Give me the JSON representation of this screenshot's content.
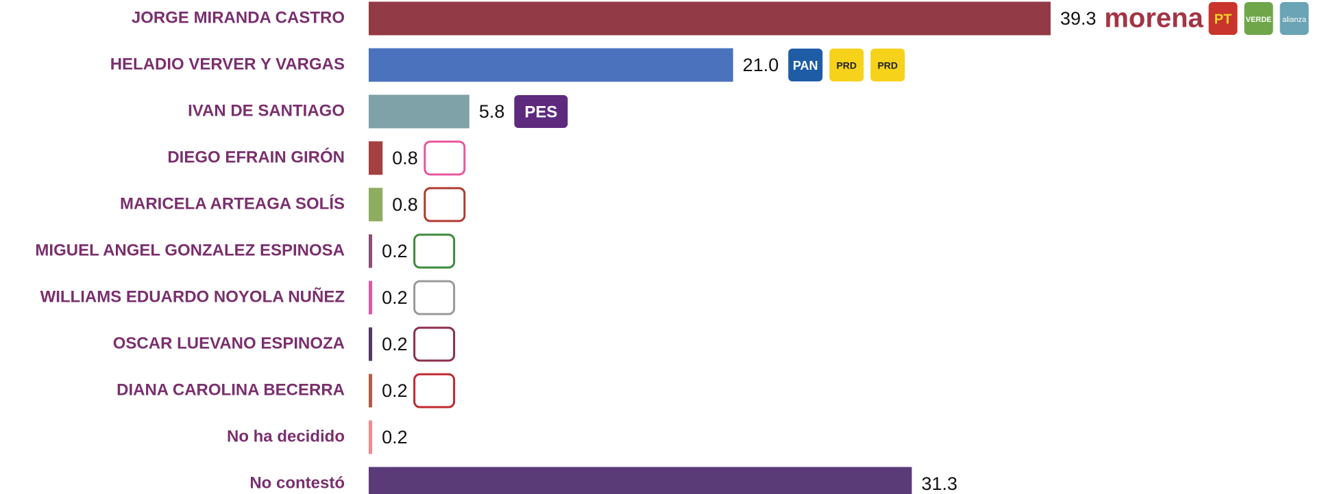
{
  "chart_data": {
    "type": "bar",
    "orientation": "horizontal",
    "categories": [
      "JORGE MIRANDA CASTRO",
      "HELADIO VERVER Y VARGAS",
      "IVAN DE SANTIAGO",
      "DIEGO EFRAIN GIRÓN",
      "MARICELA ARTEAGA SOLÍS",
      "MIGUEL ANGEL GONZALEZ ESPINOSA",
      "WILLIAMS EDUARDO NOYOLA NUÑEZ",
      "OSCAR LUEVANO ESPINOZA",
      "DIANA CAROLINA BECERRA",
      "No ha decidido",
      "No contestó"
    ],
    "values": [
      39.3,
      21.0,
      5.8,
      0.8,
      0.8,
      0.2,
      0.2,
      0.2,
      0.2,
      0.2,
      31.3
    ],
    "value_labels": [
      "39.3",
      "21.0",
      "5.8",
      "0.8",
      "0.8",
      "0.2",
      "0.2",
      "0.2",
      "0.2",
      "0.2",
      "31.3"
    ],
    "colors": [
      "#923a45",
      "#4a72bd",
      "#7fa1a8",
      "#a4403f",
      "#8fad61",
      "#8c4f72",
      "#dc5aa3",
      "#553769",
      "#b25d4a",
      "#ef8b93",
      "#5a3b78"
    ],
    "logos": [
      [
        "morena",
        "PT",
        "VERDE",
        "alianza"
      ],
      [
        "PAN",
        "PRD",
        "PRD"
      ],
      [
        "PES"
      ],
      [],
      [],
      [],
      [],
      [],
      [],
      [],
      []
    ]
  }
}
